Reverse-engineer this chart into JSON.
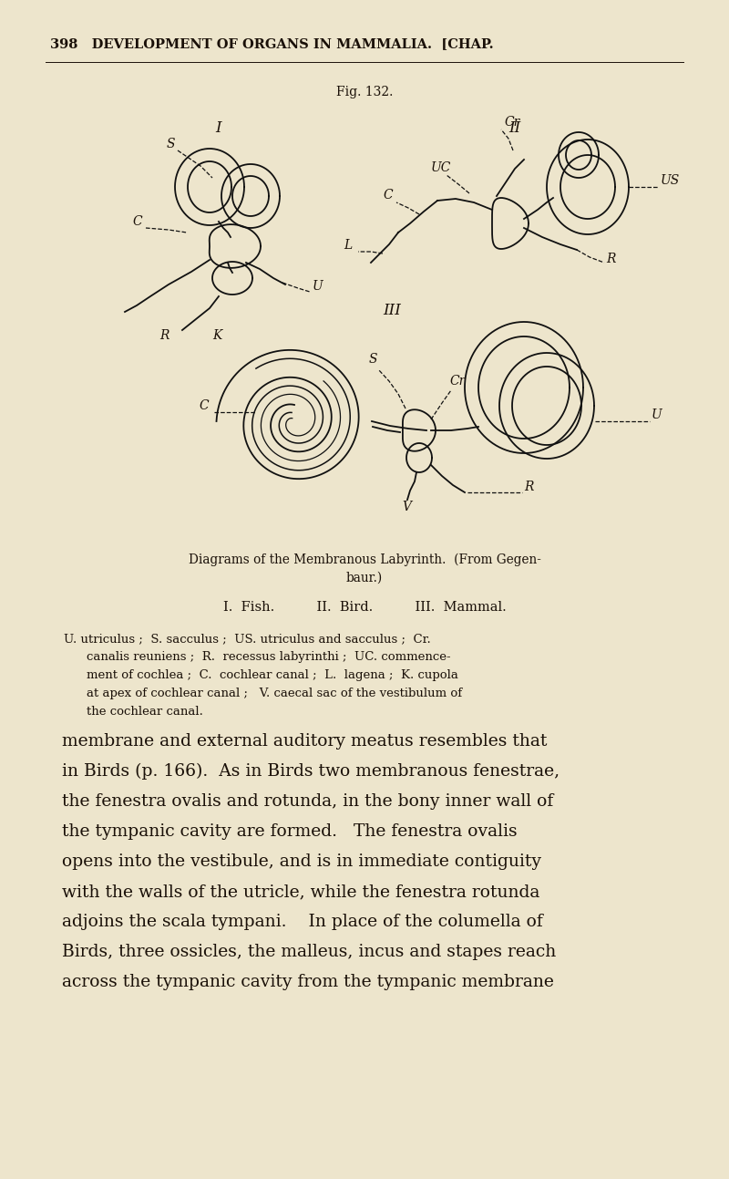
{
  "bg_color": "#ede5cc",
  "text_color": "#1a1008",
  "page_width": 8.0,
  "page_height": 12.93,
  "header_text": "398   DEVELOPMENT OF ORGANS IN MAMMALIA.  [CHAP.",
  "fig_label": "Fig. 132.",
  "caption_line1": "Diagrams of the Membranous Labyrinth.  (From Gegen-",
  "caption_line2": "baur.)",
  "caption_line3": "I.  Fish.          II.  Bird.          III.  Mammal.",
  "legend_line1": "U. utriculus ;  S. sacculus ;  US. utriculus and sacculus ;  Cr.",
  "legend_line2": "canalis reuniens ;  R.  recessus labyrinthi ;  UC. commence-",
  "legend_line3": "ment of cochlea ;  C.  cochlear canal ;  L.  lagena ;  K. cupola",
  "legend_line4": "at apex of cochlear canal ;   V. caecal sac of the vestibulum of",
  "legend_line5": "the cochlear canal.",
  "body_line1": "membrane and external auditory meatus resembles that",
  "body_line2": "in Birds (p. 166).  As in Birds two membranous fenestrae,",
  "body_line3": "the fenestra ovalis and rotunda, in the bony inner wall of",
  "body_line4": "the tympanic cavity are formed.   The fenestra ovalis",
  "body_line5": "opens into the vestibule, and is in immediate contiguity",
  "body_line6": "with the walls of the utricle, while the fenestra rotunda",
  "body_line7": "adjoins the scala tympani.    In place of the columella of",
  "body_line8": "Birds, three ossicles, the malleus, incus and stapes reach",
  "body_line9": "across the tympanic cavity from the tympanic membrane"
}
